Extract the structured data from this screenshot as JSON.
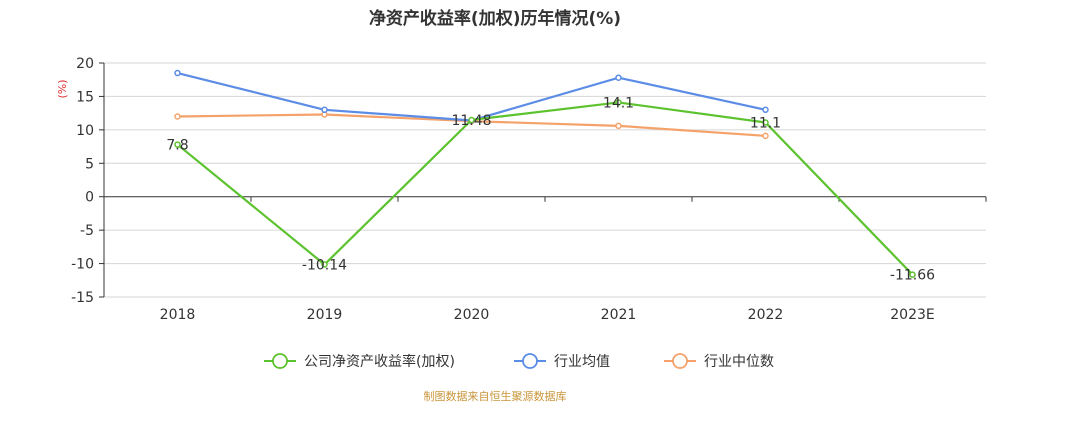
{
  "chart_data": {
    "type": "line",
    "title": "净资产收益率(加权)历年情况(%)",
    "ylabel": "(%)",
    "xlabel": "",
    "categories": [
      "2018",
      "2019",
      "2020",
      "2021",
      "2022",
      "2023E"
    ],
    "ylim": [
      -15,
      20
    ],
    "yticks": [
      20,
      15,
      10,
      5,
      0,
      -5,
      -10,
      -15
    ],
    "grid": true,
    "legend_position": "bottom",
    "series": [
      {
        "name": "公司净资产收益率(加权)",
        "color": "#5cc22e",
        "values": [
          7.8,
          -10.14,
          11.48,
          14.1,
          11.1,
          -11.66
        ],
        "labels": [
          "7.8",
          "-10.14",
          "11.48",
          "14.1",
          "11.1",
          "-11.66"
        ]
      },
      {
        "name": "行业均值",
        "color": "#5b8ce6",
        "values": [
          18.5,
          13.0,
          11.4,
          17.8,
          13.0,
          null
        ]
      },
      {
        "name": "行业中位数",
        "color": "#f5a26a",
        "values": [
          12.0,
          12.3,
          11.3,
          10.6,
          9.1,
          null
        ]
      }
    ],
    "source": "制图数据来自恒生聚源数据库"
  }
}
